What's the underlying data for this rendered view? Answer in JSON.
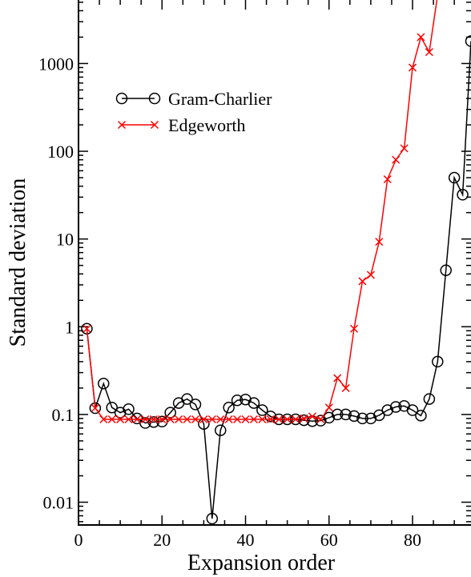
{
  "chart_data": {
    "type": "line",
    "xlabel": "Expansion order",
    "ylabel": "Standard deviation",
    "y_scale": "log",
    "xlim": [
      0,
      94
    ],
    "ylim": [
      0.0055,
      5300
    ],
    "x_ticks": [
      0,
      20,
      40,
      60,
      80
    ],
    "x_tick_labels": [
      "0",
      "20",
      "40",
      "60",
      "80"
    ],
    "y_ticks": [
      0.01,
      0.1,
      1,
      10,
      100,
      1000
    ],
    "y_tick_labels": [
      "0.01",
      "0.1",
      "1",
      "10",
      "100",
      "1000"
    ],
    "grid": false,
    "legend_position": "upper-left",
    "series": [
      {
        "name": "Gram-Charlier",
        "color": "#000000",
        "marker": "circle",
        "x": [
          2,
          4,
          6,
          8,
          10,
          12,
          14,
          16,
          18,
          20,
          22,
          24,
          26,
          28,
          30,
          32,
          34,
          36,
          38,
          40,
          42,
          44,
          46,
          48,
          50,
          52,
          54,
          56,
          58,
          60,
          62,
          64,
          66,
          68,
          70,
          72,
          74,
          76,
          78,
          80,
          82,
          84,
          86,
          88,
          90,
          92,
          94
        ],
        "values": [
          0.95,
          0.118,
          0.225,
          0.12,
          0.105,
          0.115,
          0.09,
          0.08,
          0.082,
          0.083,
          0.105,
          0.135,
          0.15,
          0.13,
          0.078,
          0.0065,
          0.066,
          0.12,
          0.145,
          0.148,
          0.135,
          0.112,
          0.095,
          0.088,
          0.088,
          0.088,
          0.086,
          0.084,
          0.085,
          0.092,
          0.1,
          0.1,
          0.096,
          0.09,
          0.09,
          0.098,
          0.112,
          0.122,
          0.125,
          0.112,
          0.097,
          0.15,
          0.4,
          4.4,
          50,
          32,
          1800
        ]
      },
      {
        "name": "Edgeworth",
        "color": "#ff0000",
        "marker": "x",
        "x": [
          2,
          4,
          6,
          8,
          10,
          12,
          14,
          16,
          18,
          20,
          22,
          24,
          26,
          28,
          30,
          32,
          34,
          36,
          38,
          40,
          42,
          44,
          46,
          48,
          50,
          52,
          54,
          56,
          58,
          60,
          62,
          64,
          66,
          68,
          70,
          72,
          74,
          76,
          78,
          80,
          82,
          84,
          86
        ],
        "values": [
          0.95,
          0.118,
          0.088,
          0.088,
          0.088,
          0.088,
          0.088,
          0.088,
          0.088,
          0.088,
          0.088,
          0.088,
          0.088,
          0.088,
          0.088,
          0.088,
          0.088,
          0.088,
          0.088,
          0.088,
          0.088,
          0.088,
          0.088,
          0.088,
          0.088,
          0.088,
          0.09,
          0.095,
          0.088,
          0.12,
          0.26,
          0.2,
          0.95,
          3.3,
          3.9,
          9.3,
          48,
          80,
          108,
          900,
          2000,
          1350,
          6000
        ]
      }
    ]
  }
}
